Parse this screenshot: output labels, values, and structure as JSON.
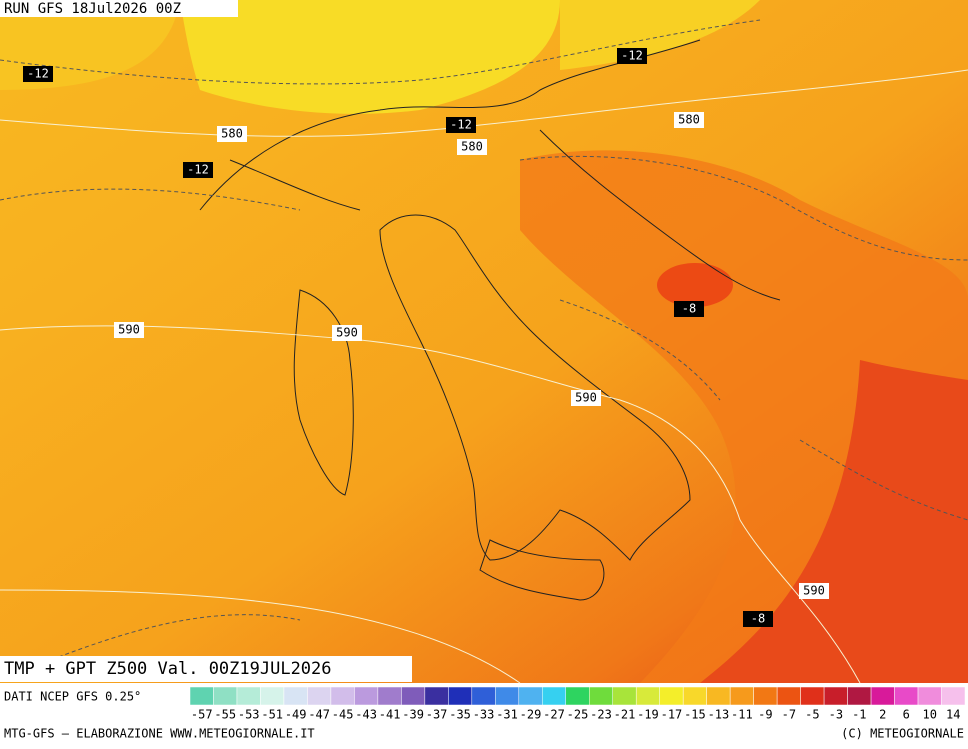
{
  "header": {
    "run": "RUN GFS 18Jul2026 00Z",
    "product": "TMP + GPT Z500 Val. 00Z19JUL2026",
    "source": "DATI NCEP GFS 0.25°"
  },
  "map": {
    "contour_labels": [
      -12,
      -12,
      -12,
      -12,
      580,
      580,
      580,
      590,
      590,
      590,
      590,
      -8,
      -8
    ]
  },
  "legend": {
    "labels": [
      -57,
      -55,
      -53,
      -51,
      -49,
      -47,
      -45,
      -43,
      -41,
      -39,
      -37,
      -35,
      -33,
      -31,
      -29,
      -27,
      -25,
      -23,
      -21,
      -19,
      -17,
      -15,
      -13,
      -11,
      -9,
      -7,
      -5,
      -3,
      -1,
      2,
      6,
      10,
      14
    ],
    "colors": [
      "#5fd3b0",
      "#8fe0c4",
      "#b5ecd8",
      "#d6f3ea",
      "#d8e4f4",
      "#dcd4f0",
      "#d2bdea",
      "#bb9ade",
      "#a07ccc",
      "#7f5cba",
      "#3a2fa0",
      "#1f2fb8",
      "#2f5fd8",
      "#3f8ae8",
      "#4fb2f0",
      "#36d0f0",
      "#2ed460",
      "#6fdc3c",
      "#a8e43a",
      "#d8ea3a",
      "#f4ee2a",
      "#f8d82a",
      "#f8b822",
      "#f69a1c",
      "#f27814",
      "#ec5412",
      "#e0301a",
      "#c81e2a",
      "#b01842",
      "#d81a9a",
      "#e84ac8",
      "#f08cdc",
      "#f6c0ec"
    ]
  },
  "footer": {
    "left": "MTG-GFS – ELABORAZIONE WWW.METEOGIORNALE.IT",
    "right": "(C) METEOGIORNALE"
  }
}
